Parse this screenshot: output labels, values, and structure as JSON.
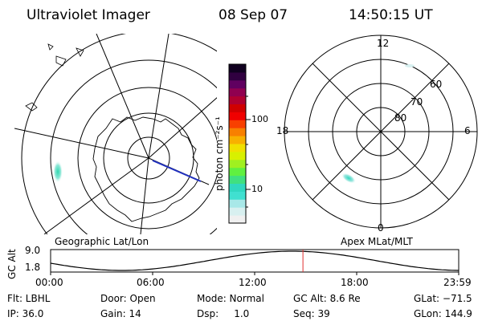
{
  "header": {
    "instrument": "Ultraviolet Imager",
    "date": "08 Sep 07",
    "time": "14:50:15 UT"
  },
  "geo_panel": {
    "title": "Geographic Lat/Lon"
  },
  "colorbar": {
    "unit_label": "photon cm⁻²s⁻¹",
    "ticks": [
      "100",
      "10"
    ],
    "colors": [
      "#f0f0f0",
      "#d8f0f0",
      "#a8e8e8",
      "#40e0d0",
      "#30d8c0",
      "#40e080",
      "#60f040",
      "#a0f020",
      "#d8f000",
      "#f0e000",
      "#f8b000",
      "#f88000",
      "#f84000",
      "#f00000",
      "#d00000",
      "#b00030",
      "#900050",
      "#600060",
      "#300040",
      "#100020"
    ]
  },
  "apex_panel": {
    "title": "Apex MLat/MLT",
    "mlt_labels": {
      "top": "12",
      "bottom": "0",
      "left": "18",
      "right": "6"
    },
    "lat_labels": [
      "60",
      "70",
      "80"
    ]
  },
  "altitude_plot": {
    "ylabel": "GC Alt",
    "yticks": [
      "9.0",
      "1.8"
    ],
    "xticks": [
      "00:00",
      "06:00",
      "12:00",
      "18:00",
      "23:59"
    ],
    "current_time_hours": 14.84,
    "marker_color": "#e03030"
  },
  "info": {
    "filter": "Flt: LBHL",
    "door": "Door: Open",
    "mode": "Mode: Normal",
    "gc_alt": "GC Alt: 8.6 Re",
    "glat": "GLat: −71.5",
    "ip": "IP: 36.0",
    "gain": "Gain: 14",
    "dsp": "Dsp:     1.0",
    "seq": "Seq: 39",
    "glon": "GLon: 144.9"
  }
}
